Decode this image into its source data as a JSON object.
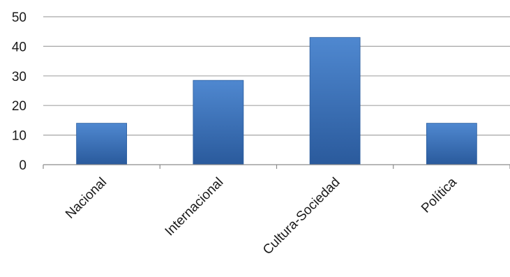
{
  "chart_data": {
    "type": "bar",
    "categories": [
      "Nacional",
      "Internacional",
      "Cultura-Sociedad",
      "Política"
    ],
    "values": [
      14,
      28.5,
      43,
      14
    ],
    "ylim": [
      0,
      50
    ],
    "yticks": [
      0,
      10,
      20,
      30,
      40,
      50
    ],
    "grid": true,
    "legend": "none",
    "colors": {
      "bar_top": "#4f88d0",
      "bar_bottom": "#2a5a9c",
      "bar_edge": "#2b5d9e",
      "grid": "#a6a6a6",
      "text": "#1a1a1a"
    }
  }
}
